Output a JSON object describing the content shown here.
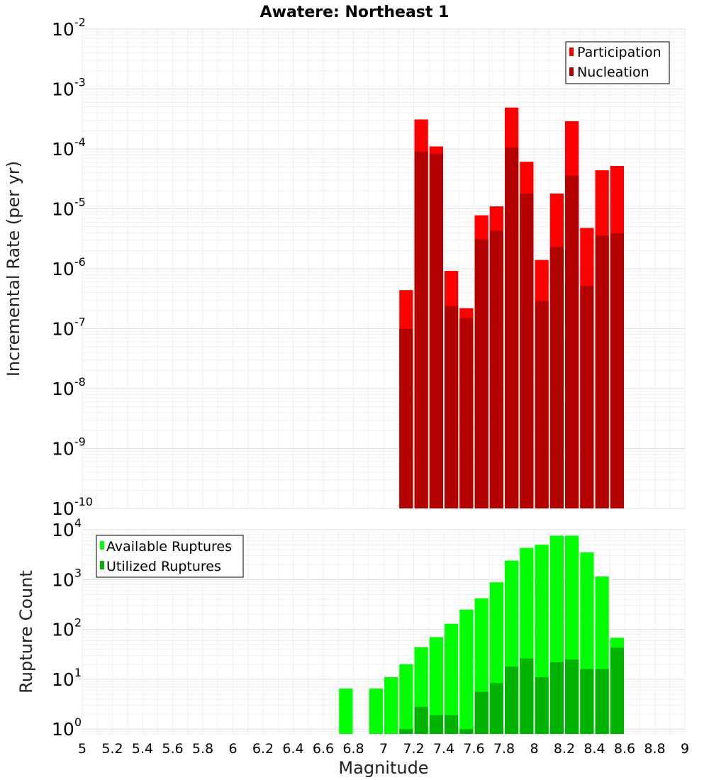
{
  "chart_data": [
    {
      "type": "bar",
      "title": "Awatere: Northeast 1",
      "xlabel": "Magnitude",
      "ylabel": "Incremental Rate (per yr)",
      "yscale": "log",
      "ylim": [
        1e-10,
        0.01
      ],
      "xlim": [
        5,
        9
      ],
      "grid": true,
      "legend_position": "top-right",
      "legend": [
        {
          "label": "Participation",
          "color": "#ff0000"
        },
        {
          "label": "Nucleation",
          "color": "#b30000"
        }
      ],
      "x": [
        7.15,
        7.25,
        7.35,
        7.45,
        7.55,
        7.65,
        7.75,
        7.85,
        7.95,
        8.05,
        8.15,
        8.25,
        8.35,
        8.45,
        8.55
      ],
      "series": [
        {
          "name": "Participation",
          "color": "#ff0000",
          "values": [
            4.4e-07,
            0.00031,
            0.00011,
            9.2e-07,
            2.2e-07,
            7.8e-06,
            1.1e-05,
            0.00049,
            6.1e-05,
            1.4e-06,
            1.8e-05,
            0.00029,
            4.8e-06,
            4.4e-05,
            5.2e-05
          ]
        },
        {
          "name": "Nucleation",
          "color": "#b30000",
          "values": [
            1e-07,
            9e-05,
            8.3e-05,
            2.4e-07,
            1.5e-07,
            3.1e-06,
            4.3e-06,
            0.000105,
            1.8e-05,
            2.9e-07,
            2.3e-06,
            3.6e-05,
            5.2e-07,
            3.6e-06,
            3.9e-06
          ]
        }
      ]
    },
    {
      "type": "bar",
      "xlabel": "Magnitude",
      "ylabel": "Rupture Count",
      "yscale": "log",
      "ylim": [
        0.8,
        10000
      ],
      "xlim": [
        5,
        9
      ],
      "grid": true,
      "legend_position": "top-left",
      "legend": [
        {
          "label": "Available Ruptures",
          "color": "#00ff00"
        },
        {
          "label": "Utilized Ruptures",
          "color": "#00b300"
        }
      ],
      "x": [
        6.75,
        6.95,
        7.05,
        7.15,
        7.25,
        7.35,
        7.45,
        7.55,
        7.65,
        7.75,
        7.85,
        7.95,
        8.05,
        8.15,
        8.25,
        8.35,
        8.45,
        8.55
      ],
      "series": [
        {
          "name": "Available Ruptures",
          "color": "#00ff00",
          "values": [
            6.5,
            6.5,
            11,
            20,
            44,
            70,
            130,
            250,
            420,
            880,
            2400,
            4300,
            5000,
            7600,
            7600,
            3500,
            1150,
            68
          ]
        },
        {
          "name": "Utilized Ruptures",
          "color": "#00b300",
          "values": [
            0,
            0,
            0,
            1,
            2.8,
            1.9,
            1.9,
            1,
            5.6,
            8.4,
            18,
            26,
            11,
            22,
            25,
            16,
            16,
            43
          ]
        }
      ]
    }
  ],
  "x_ticks": [
    "5",
    "5.2",
    "5.4",
    "5.6",
    "5.8",
    "6",
    "6.2",
    "6.4",
    "6.6",
    "6.8",
    "7",
    "7.2",
    "7.4",
    "7.6",
    "7.8",
    "8",
    "8.2",
    "8.4",
    "8.6",
    "8.8",
    "9"
  ],
  "top_y_ticks": [
    {
      "base": "10",
      "exp": "-2",
      "value": 0.01
    },
    {
      "base": "10",
      "exp": "-3",
      "value": 0.001
    },
    {
      "base": "10",
      "exp": "-4",
      "value": 0.0001
    },
    {
      "base": "10",
      "exp": "-5",
      "value": 1e-05
    },
    {
      "base": "10",
      "exp": "-6",
      "value": 1e-06
    },
    {
      "base": "10",
      "exp": "-7",
      "value": 1e-07
    },
    {
      "base": "10",
      "exp": "-8",
      "value": 1e-08
    },
    {
      "base": "10",
      "exp": "-9",
      "value": 1e-09
    },
    {
      "base": "10",
      "exp": "-10",
      "value": 1e-10
    }
  ],
  "bottom_y_ticks": [
    {
      "base": "10",
      "exp": "4",
      "value": 10000
    },
    {
      "base": "10",
      "exp": "3",
      "value": 1000
    },
    {
      "base": "10",
      "exp": "2",
      "value": 100
    },
    {
      "base": "10",
      "exp": "1",
      "value": 10
    },
    {
      "base": "10",
      "exp": "0",
      "value": 1
    }
  ]
}
